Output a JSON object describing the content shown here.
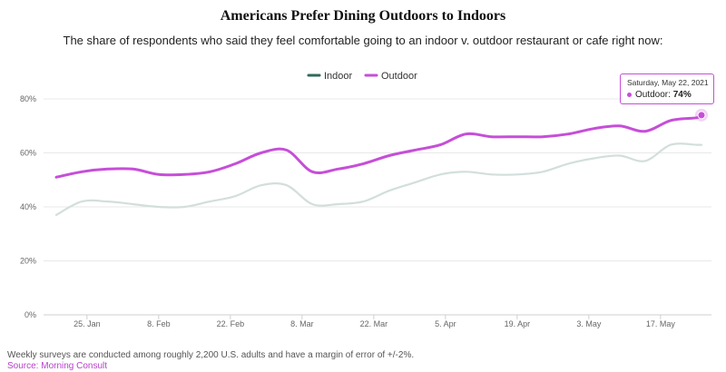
{
  "header": {
    "title": "Americans Prefer Dining Outdoors to Indoors",
    "subtitle": "The share of respondents who said they feel comfortable going to an indoor v. outdoor restaurant or cafe right now:"
  },
  "footer": {
    "note": "Weekly surveys are conducted among roughly 2,200 U.S. adults and have a margin of error of +/-2%.",
    "source": "Source: Morning Consult"
  },
  "tooltip": {
    "date": "Saturday, May 22, 2021",
    "series": "Outdoor",
    "value_label": "74%"
  },
  "colors": {
    "indoor": "#d2dfdc",
    "indoor_legend": "#2d6a5a",
    "outdoor": "#c64ed8",
    "source": "#b641c9",
    "grid": "#e8e8e8"
  },
  "chart_data": {
    "type": "line",
    "title": "Americans Prefer Dining Outdoors to Indoors",
    "xlabel": "",
    "ylabel": "",
    "ylim": [
      0,
      80
    ],
    "yticks": [
      "0%",
      "20%",
      "40%",
      "60%",
      "80%"
    ],
    "ytick_values": [
      0,
      20,
      40,
      60,
      80
    ],
    "xticks": [
      "25. Jan",
      "8. Feb",
      "22. Feb",
      "8. Mar",
      "22. Mar",
      "5. Apr",
      "19. Apr",
      "3. May",
      "17. May"
    ],
    "x": [
      0,
      5,
      10,
      15,
      20,
      25,
      30,
      35,
      40,
      45,
      50,
      55,
      60,
      65,
      70,
      75,
      80,
      85,
      90,
      95,
      100,
      105,
      110,
      115,
      120,
      125,
      126
    ],
    "xtick_days": [
      6,
      20,
      34,
      48,
      62,
      76,
      90,
      104,
      118
    ],
    "x_domain": [
      0,
      126
    ],
    "legend": [
      "Indoor",
      "Outdoor"
    ],
    "series": [
      {
        "name": "Indoor",
        "values": [
          37,
          42,
          42,
          41,
          40,
          40,
          42,
          44,
          48,
          48,
          41,
          41,
          42,
          46,
          49,
          52,
          53,
          52,
          52,
          53,
          56,
          58,
          59,
          57,
          63,
          63,
          63
        ]
      },
      {
        "name": "Outdoor",
        "values": [
          51,
          53,
          54,
          54,
          52,
          52,
          53,
          56,
          60,
          61,
          53,
          54,
          56,
          59,
          61,
          63,
          67,
          66,
          66,
          66,
          67,
          69,
          70,
          68,
          72,
          73,
          74
        ]
      }
    ]
  }
}
